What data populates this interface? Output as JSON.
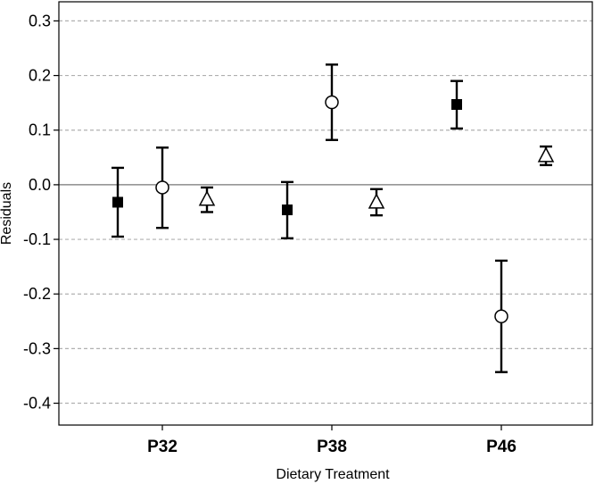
{
  "chart_data": {
    "type": "scatter",
    "xlabel": "Dietary Treatment",
    "ylabel": "Residuals",
    "categories": [
      "P32",
      "P38",
      "P46"
    ],
    "ylim": [
      -0.44,
      0.335
    ],
    "yticks": [
      0.3,
      0.2,
      0.1,
      0.0,
      -0.1,
      -0.2,
      -0.3,
      -0.4
    ],
    "ytick_labels": [
      "0.3",
      "0.2",
      "0.1",
      "0.0",
      "-0.1",
      "-0.2",
      "-0.3",
      "-0.4"
    ],
    "grid": true,
    "grid_style": "dashed horizontal",
    "zero_line": true,
    "series": [
      {
        "marker": "filled-square",
        "offset": -0.5,
        "points": [
          {
            "category": "P32",
            "y": -0.032,
            "low": -0.095,
            "high": 0.031
          },
          {
            "category": "P38",
            "y": -0.046,
            "low": -0.098,
            "high": 0.005
          },
          {
            "category": "P46",
            "y": 0.147,
            "low": 0.103,
            "high": 0.19
          }
        ]
      },
      {
        "marker": "open-circle",
        "offset": 0.0,
        "points": [
          {
            "category": "P32",
            "y": -0.005,
            "low": -0.079,
            "high": 0.068
          },
          {
            "category": "P38",
            "y": 0.151,
            "low": 0.082,
            "high": 0.22
          },
          {
            "category": "P46",
            "y": -0.241,
            "low": -0.343,
            "high": -0.139
          }
        ]
      },
      {
        "marker": "open-triangle",
        "offset": 0.5,
        "points": [
          {
            "category": "P32",
            "y": -0.026,
            "low": -0.05,
            "high": -0.005
          },
          {
            "category": "P38",
            "y": -0.031,
            "low": -0.056,
            "high": -0.008
          },
          {
            "category": "P46",
            "y": 0.054,
            "low": 0.036,
            "high": 0.07
          }
        ]
      }
    ]
  }
}
